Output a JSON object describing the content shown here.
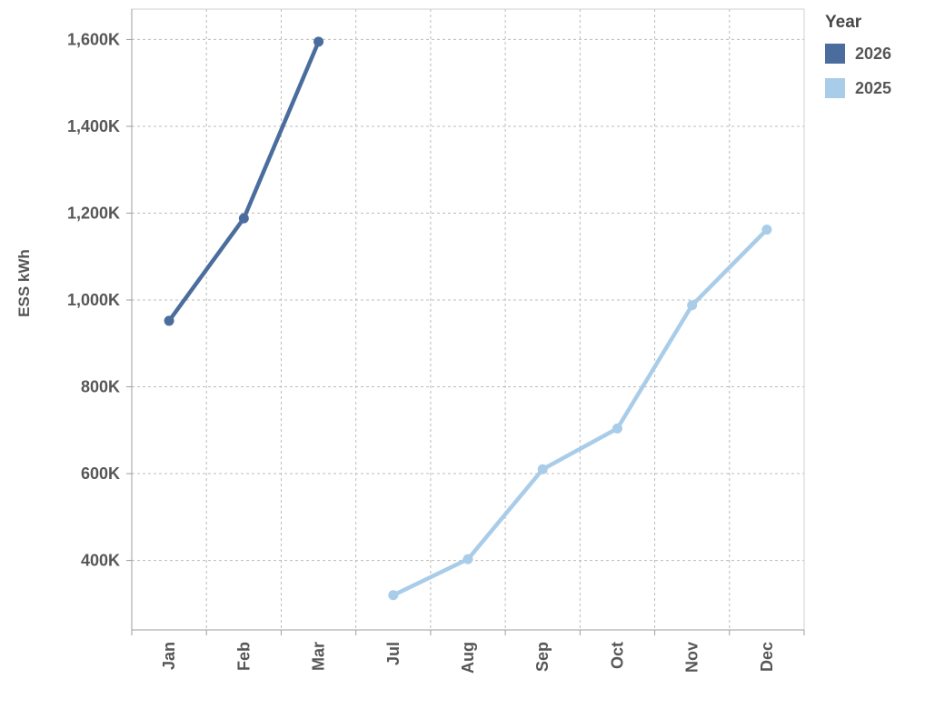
{
  "chart_data": {
    "type": "line",
    "title": "",
    "xlabel": "",
    "ylabel": "ESS kWh",
    "value_unit": "K (thousands of kWh)",
    "categories": [
      "Jan",
      "Feb",
      "Mar",
      "Jul",
      "Aug",
      "Sep",
      "Oct",
      "Nov",
      "Dec"
    ],
    "series": [
      {
        "name": "2026",
        "color": "#4a6d9e",
        "values": [
          952,
          1188,
          1595,
          null,
          null,
          null,
          null,
          null,
          null
        ]
      },
      {
        "name": "2025",
        "color": "#a9cce8",
        "values": [
          null,
          null,
          null,
          320,
          403,
          610,
          704,
          988,
          1162
        ]
      }
    ],
    "y_ticks": [
      {
        "value": 400,
        "label": "400K"
      },
      {
        "value": 600,
        "label": "600K"
      },
      {
        "value": 800,
        "label": "800K"
      },
      {
        "value": 1000,
        "label": "1,000K"
      },
      {
        "value": 1200,
        "label": "1,200K"
      },
      {
        "value": 1400,
        "label": "1,400K"
      },
      {
        "value": 1600,
        "label": "1,600K"
      }
    ],
    "ylim": [
      240,
      1670
    ],
    "grid": {
      "style": "dashed",
      "horizontal": true,
      "vertical": true
    },
    "legend": {
      "title": "Year",
      "position": "top-right",
      "entries": [
        {
          "label": "2026",
          "color": "#4a6d9e"
        },
        {
          "label": "2025",
          "color": "#a9cce8"
        }
      ]
    }
  },
  "colors": {
    "background": "#ffffff",
    "grid": "#bcbcbc",
    "axis_line": "#9e9e9e",
    "plot_border": "#d2d2d2",
    "axis_text": "#565656"
  }
}
